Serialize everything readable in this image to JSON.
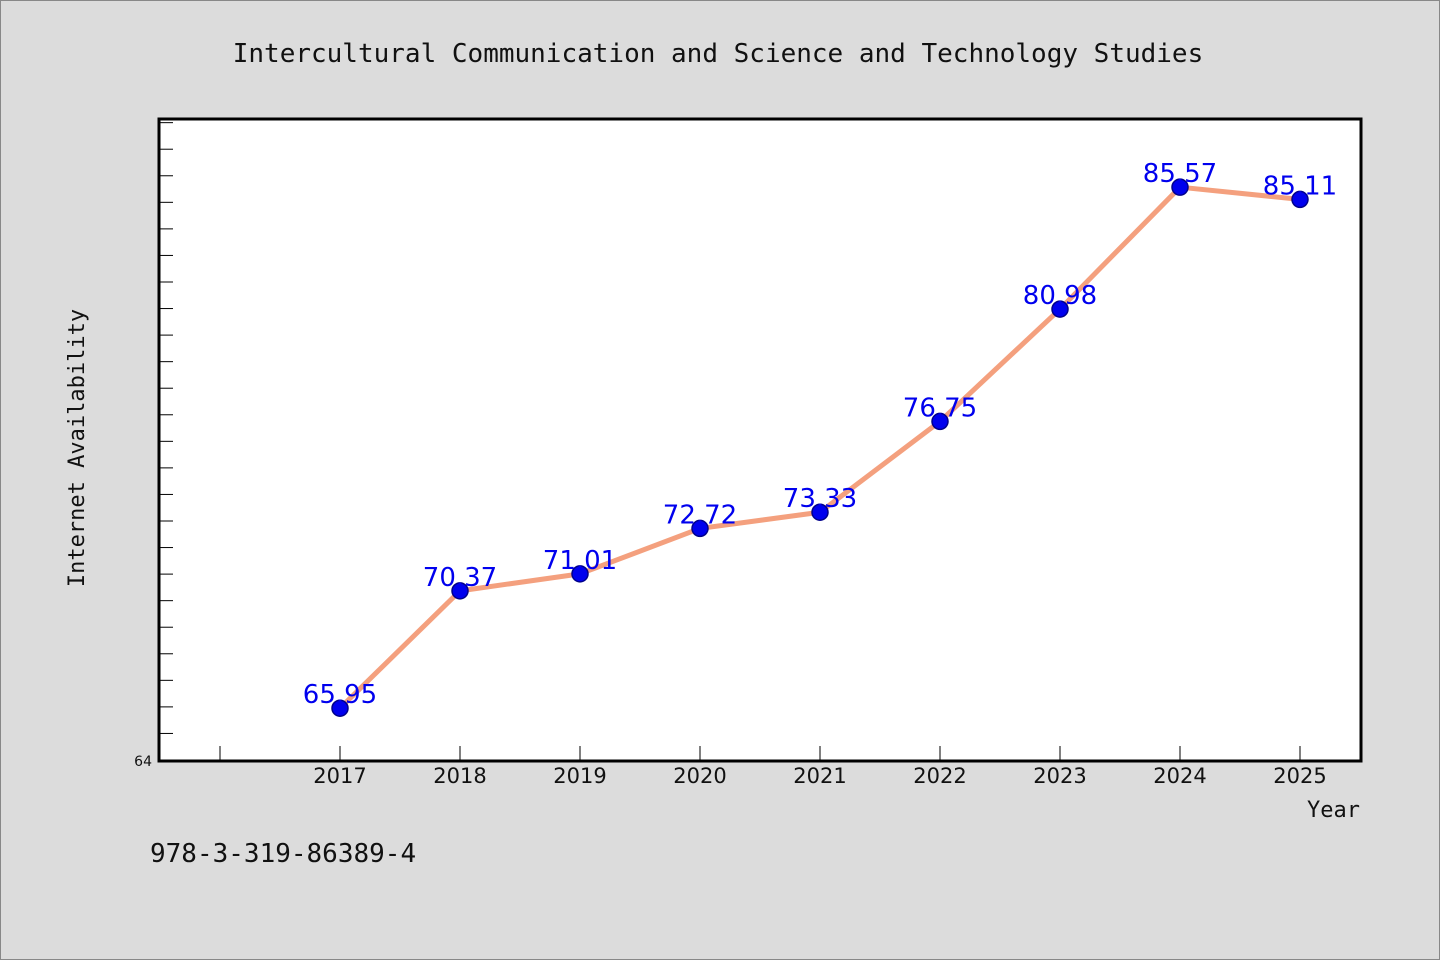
{
  "chart_data": {
    "type": "line",
    "title": "Intercultural Communication and Science and Technology Studies",
    "xlabel": "Year",
    "ylabel": "Internet Availability",
    "x": [
      "2017",
      "2018",
      "2019",
      "2020",
      "2021",
      "2022",
      "2023",
      "2024",
      "2025"
    ],
    "series": [
      {
        "values": [
          65.95,
          70.37,
          71.01,
          72.72,
          73.33,
          76.75,
          80.98,
          85.57,
          85.11
        ],
        "labels": [
          "65.95",
          "70.37",
          "71.01",
          "72.72",
          "73.33",
          "76.75",
          "80.98",
          "85.57",
          "85.11"
        ]
      }
    ],
    "y_tick_labels": [
      "64"
    ],
    "ylim": [
      64,
      88.1
    ],
    "grid": false,
    "legend": "none",
    "colors": {
      "line": "#f4a07e",
      "marker": "#0000ee",
      "data_label": "#0000ee",
      "background": "#dcdcdc",
      "plot_background": "#ffffff"
    }
  },
  "footer": {
    "isbn": "978-3-319-86389-4"
  }
}
